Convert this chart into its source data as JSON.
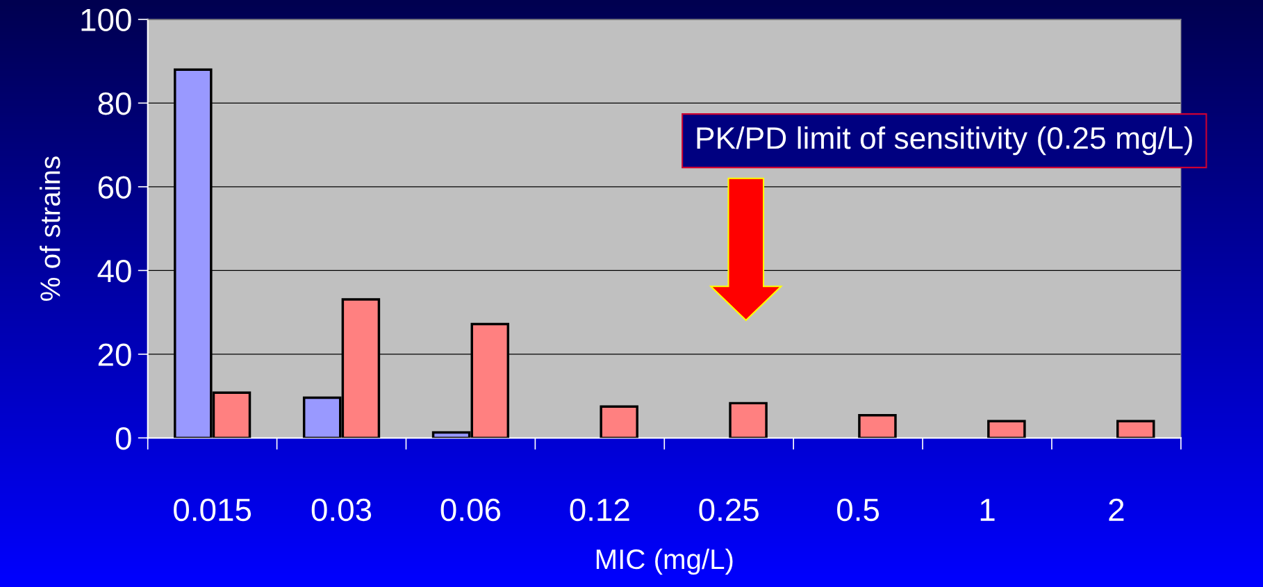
{
  "chart_data": {
    "type": "bar",
    "ylabel": "% of strains",
    "xlabel": "MIC (mg/L)",
    "categories": [
      "0.015",
      "0.03",
      "0.06",
      "0.12",
      "0.25",
      "0.5",
      "1",
      "2"
    ],
    "series": [
      {
        "color": "#9999ff",
        "values": [
          88.0,
          9.6,
          1.3,
          null,
          null,
          null,
          null,
          null
        ]
      },
      {
        "color": "#ff8080",
        "values": [
          10.8,
          33.1,
          27.2,
          7.5,
          8.3,
          5.4,
          4.0,
          4.0
        ]
      }
    ],
    "ylim": [
      0,
      100
    ],
    "yticks": [
      0,
      20,
      40,
      60,
      80,
      100
    ],
    "grid": "y",
    "legend": false,
    "annotations": [
      "PK/PD limit of sensitivity (0.25 mg/L)"
    ]
  }
}
